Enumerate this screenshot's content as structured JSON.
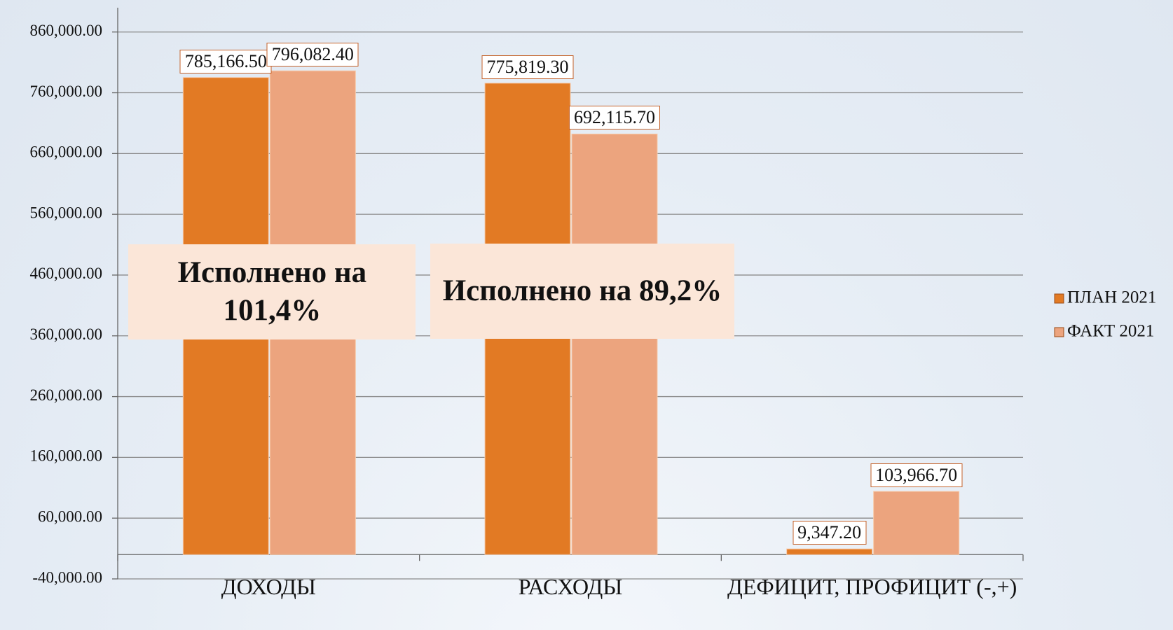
{
  "chart_data": {
    "type": "bar",
    "categories": [
      "ДОХОДЫ",
      "РАСХОДЫ",
      "ДЕФИЦИТ, ПРОФИЦИТ (-,+)"
    ],
    "series": [
      {
        "name": "ПЛАН 2021",
        "color": "#e27a24",
        "values": [
          785166.5,
          775819.3,
          9347.2
        ],
        "value_labels": [
          "785,166.50",
          "775,819.30",
          "9,347.20"
        ]
      },
      {
        "name": "ФАКТ 2021",
        "color": "#eca47e",
        "values": [
          796082.4,
          692115.7,
          103966.7
        ],
        "value_labels": [
          "796,082.40",
          "692,115.70",
          "103,966.70"
        ]
      }
    ],
    "ylim": [
      -40000,
      900000
    ],
    "yticks": [
      {
        "value": -40000,
        "label": "-40,000.00"
      },
      {
        "value": 60000,
        "label": "60,000.00"
      },
      {
        "value": 160000,
        "label": "160,000.00"
      },
      {
        "value": 260000,
        "label": "260,000.00"
      },
      {
        "value": 360000,
        "label": "360,000.00"
      },
      {
        "value": 460000,
        "label": "460,000.00"
      },
      {
        "value": 560000,
        "label": "560,000.00"
      },
      {
        "value": 660000,
        "label": "660,000.00"
      },
      {
        "value": 760000,
        "label": "760,000.00"
      },
      {
        "value": 860000,
        "label": "860,000.00"
      }
    ],
    "grid": true,
    "legend": "right",
    "annotations": [
      {
        "text": "Исполнено на 101,4%",
        "category": 0
      },
      {
        "text": "Исполнено на 89,2%",
        "category": 1
      }
    ]
  }
}
